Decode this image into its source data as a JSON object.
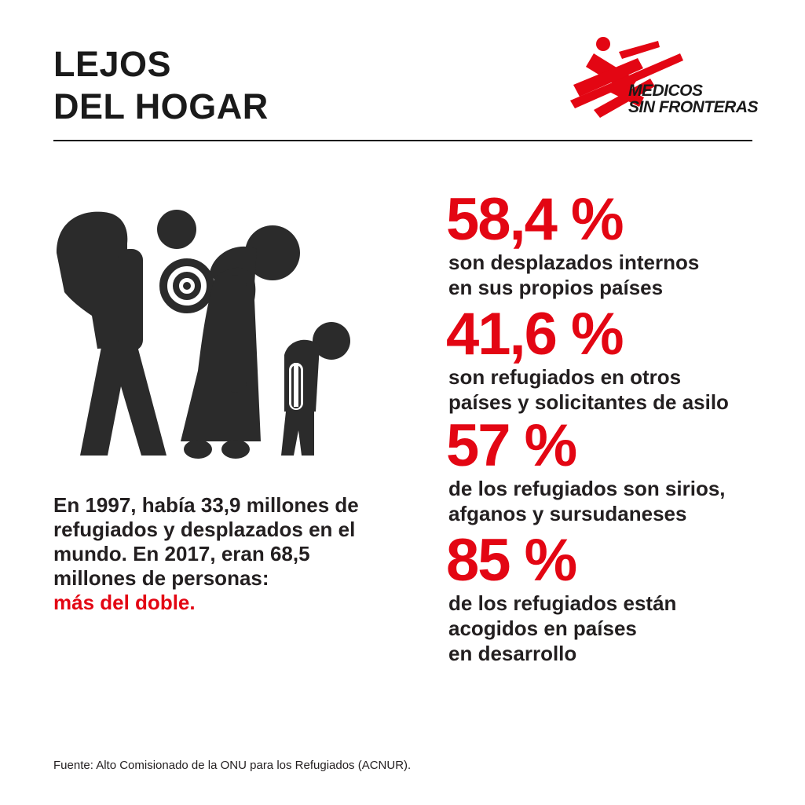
{
  "header": {
    "title_line1": "LEJOS",
    "title_line2": "DEL HOGAR"
  },
  "logo": {
    "line1": "MEDICOS",
    "line2": "SIN FRONTERAS",
    "color": "#e30613"
  },
  "intro": {
    "text": "En 1997, había 33,9 millones de refugiados y desplazados en el mundo. En 2017, eran 68,5 millones de personas:",
    "highlight": "más del doble."
  },
  "stats": [
    {
      "value": "58,4 %",
      "description": "son desplazados internos\nen sus propios países"
    },
    {
      "value": "41,6 %",
      "description": "son refugiados en otros\npaíses y solicitantes de asilo"
    },
    {
      "value": "57 %",
      "description": "de los refugiados son sirios,\nafganos y sursudaneses"
    },
    {
      "value": "85 %",
      "description": "de los refugiados están\nacogidos en países\nen desarrollo"
    }
  ],
  "footer": {
    "source": "Fuente: Alto Comisionado de la ONU para los Refugiados (ACNUR)."
  },
  "colors": {
    "accent": "#e30613",
    "text": "#231f20"
  },
  "icons": [
    "refugee-family-icon",
    "msf-logo-icon"
  ]
}
